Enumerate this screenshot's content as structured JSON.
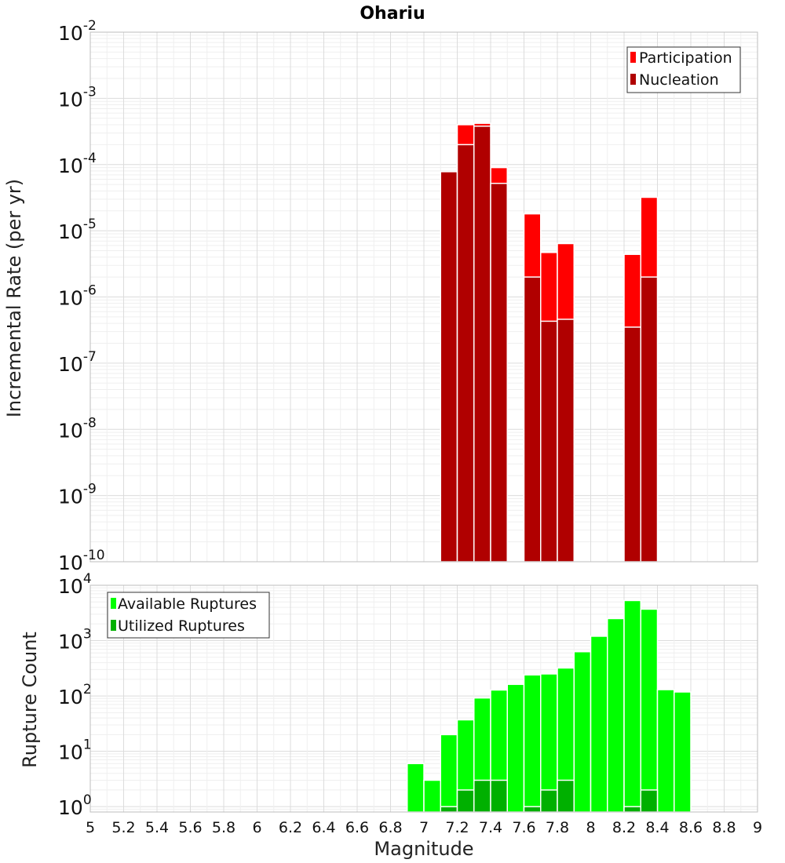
{
  "chart_data": [
    {
      "type": "bar",
      "title": "Ohariu",
      "ylabel": "Incremental Rate (per yr)",
      "y_scale": "log",
      "ylim": [
        1e-10,
        0.01
      ],
      "xlim": [
        5,
        9
      ],
      "grid": true,
      "legend_position": "top-right",
      "y_ticks": [
        {
          "base": "10",
          "exp": "-2"
        },
        {
          "base": "10",
          "exp": "-3"
        },
        {
          "base": "10",
          "exp": "-4"
        },
        {
          "base": "10",
          "exp": "-5"
        },
        {
          "base": "10",
          "exp": "-6"
        },
        {
          "base": "10",
          "exp": "-7"
        },
        {
          "base": "10",
          "exp": "-8"
        },
        {
          "base": "10",
          "exp": "-9"
        },
        {
          "base": "10",
          "exp": "-10"
        }
      ],
      "series": [
        {
          "name": "Participation",
          "color": "#ff0000",
          "points": [
            {
              "x": 7.15,
              "y": 7.8e-05
            },
            {
              "x": 7.25,
              "y": 0.0004
            },
            {
              "x": 7.35,
              "y": 0.00042
            },
            {
              "x": 7.45,
              "y": 9e-05
            },
            {
              "x": 7.65,
              "y": 1.8e-05
            },
            {
              "x": 7.75,
              "y": 4.7e-06
            },
            {
              "x": 7.85,
              "y": 6.4e-06
            },
            {
              "x": 8.25,
              "y": 4.4e-06
            },
            {
              "x": 8.35,
              "y": 3.2e-05
            }
          ]
        },
        {
          "name": "Nucleation",
          "color": "#b00000",
          "points": [
            {
              "x": 7.15,
              "y": 7.8e-05
            },
            {
              "x": 7.25,
              "y": 0.0002
            },
            {
              "x": 7.35,
              "y": 0.00038
            },
            {
              "x": 7.45,
              "y": 5.2e-05
            },
            {
              "x": 7.65,
              "y": 2e-06
            },
            {
              "x": 7.75,
              "y": 4.3e-07
            },
            {
              "x": 7.85,
              "y": 4.6e-07
            },
            {
              "x": 8.25,
              "y": 3.5e-07
            },
            {
              "x": 8.35,
              "y": 2e-06
            }
          ]
        }
      ]
    },
    {
      "type": "bar",
      "xlabel": "Magnitude",
      "ylabel": "Rupture Count",
      "y_scale": "log",
      "ylim": [
        0.8,
        10000
      ],
      "xlim": [
        5,
        9
      ],
      "grid": true,
      "legend_position": "top-left",
      "x_ticks": [
        "5",
        "5.2",
        "5.4",
        "5.6",
        "5.8",
        "6",
        "6.2",
        "6.4",
        "6.6",
        "6.8",
        "7",
        "7.2",
        "7.4",
        "7.6",
        "7.8",
        "8",
        "8.2",
        "8.4",
        "8.6",
        "8.8",
        "9"
      ],
      "y_ticks": [
        {
          "base": "10",
          "exp": "4"
        },
        {
          "base": "10",
          "exp": "3"
        },
        {
          "base": "10",
          "exp": "2"
        },
        {
          "base": "10",
          "exp": "1"
        },
        {
          "base": "10",
          "exp": "0"
        }
      ],
      "series": [
        {
          "name": "Available Ruptures",
          "color": "#00ff00",
          "points": [
            {
              "x": 6.95,
              "y": 6
            },
            {
              "x": 7.05,
              "y": 3
            },
            {
              "x": 7.15,
              "y": 20
            },
            {
              "x": 7.25,
              "y": 37
            },
            {
              "x": 7.35,
              "y": 92
            },
            {
              "x": 7.45,
              "y": 128
            },
            {
              "x": 7.55,
              "y": 162
            },
            {
              "x": 7.65,
              "y": 240
            },
            {
              "x": 7.75,
              "y": 250
            },
            {
              "x": 7.85,
              "y": 320
            },
            {
              "x": 7.95,
              "y": 630
            },
            {
              "x": 8.05,
              "y": 1200
            },
            {
              "x": 8.15,
              "y": 2500
            },
            {
              "x": 8.25,
              "y": 5300
            },
            {
              "x": 8.35,
              "y": 3700
            },
            {
              "x": 8.45,
              "y": 130
            },
            {
              "x": 8.55,
              "y": 118
            }
          ]
        },
        {
          "name": "Utilized Ruptures",
          "color": "#00b000",
          "points": [
            {
              "x": 7.15,
              "y": 1
            },
            {
              "x": 7.25,
              "y": 2
            },
            {
              "x": 7.35,
              "y": 3
            },
            {
              "x": 7.45,
              "y": 3
            },
            {
              "x": 7.65,
              "y": 1
            },
            {
              "x": 7.75,
              "y": 2
            },
            {
              "x": 7.85,
              "y": 3
            },
            {
              "x": 8.25,
              "y": 1
            },
            {
              "x": 8.35,
              "y": 2
            }
          ]
        }
      ]
    }
  ]
}
